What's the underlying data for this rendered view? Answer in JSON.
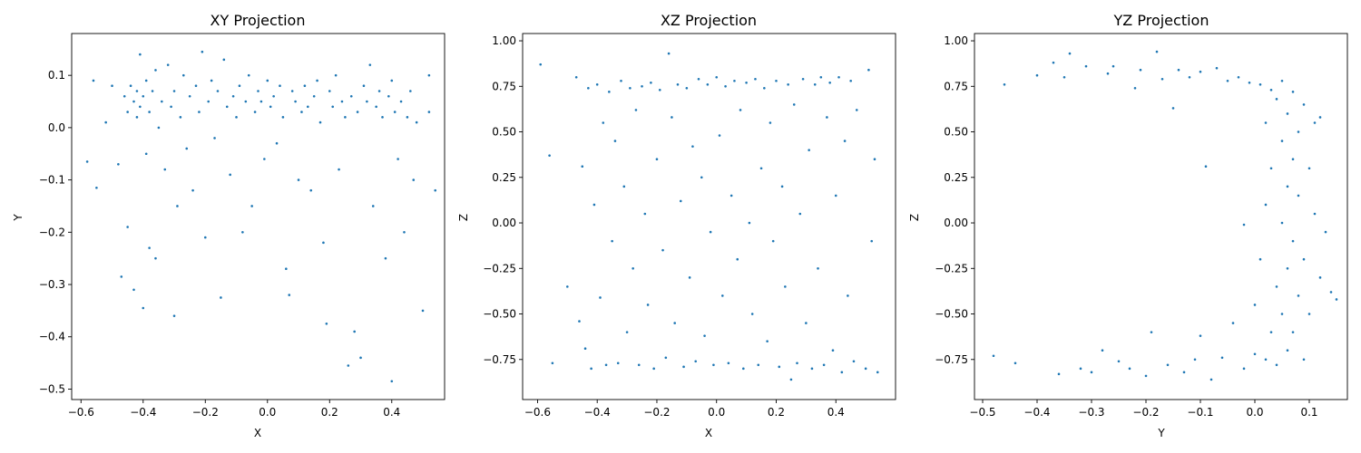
{
  "chart_data": [
    {
      "type": "scatter",
      "title": "XY Projection",
      "xlabel": "X",
      "ylabel": "Y",
      "xlim": [
        -0.63,
        0.57
      ],
      "ylim": [
        -0.52,
        0.18
      ],
      "xticks": [
        -0.6,
        -0.4,
        -0.2,
        0.0,
        0.2,
        0.4
      ],
      "yticks": [
        -0.5,
        -0.4,
        -0.3,
        -0.2,
        -0.1,
        0.0,
        0.1
      ],
      "xtick_labels": [
        "−0.6",
        "−0.4",
        "−0.2",
        "0.0",
        "0.2",
        "0.4"
      ],
      "ytick_labels": [
        "−0.5",
        "−0.4",
        "−0.3",
        "−0.2",
        "−0.1",
        "0.0",
        "0.1"
      ],
      "color": "#1f77b4",
      "points": [
        [
          -0.58,
          -0.065
        ],
        [
          -0.56,
          0.09
        ],
        [
          -0.55,
          -0.115
        ],
        [
          -0.52,
          0.01
        ],
        [
          -0.5,
          0.08
        ],
        [
          -0.48,
          -0.07
        ],
        [
          -0.47,
          -0.285
        ],
        [
          -0.46,
          0.06
        ],
        [
          -0.45,
          0.03
        ],
        [
          -0.45,
          -0.19
        ],
        [
          -0.44,
          0.08
        ],
        [
          -0.43,
          0.05
        ],
        [
          -0.43,
          -0.31
        ],
        [
          -0.42,
          0.02
        ],
        [
          -0.42,
          0.07
        ],
        [
          -0.41,
          0.14
        ],
        [
          -0.41,
          0.04
        ],
        [
          -0.4,
          0.06
        ],
        [
          -0.4,
          -0.345
        ],
        [
          -0.39,
          0.09
        ],
        [
          -0.39,
          -0.05
        ],
        [
          -0.38,
          0.03
        ],
        [
          -0.38,
          -0.23
        ],
        [
          -0.37,
          0.07
        ],
        [
          -0.36,
          0.11
        ],
        [
          -0.36,
          -0.25
        ],
        [
          -0.35,
          0.0
        ],
        [
          -0.34,
          0.05
        ],
        [
          -0.33,
          -0.08
        ],
        [
          -0.32,
          0.12
        ],
        [
          -0.31,
          0.04
        ],
        [
          -0.3,
          -0.36
        ],
        [
          -0.3,
          0.07
        ],
        [
          -0.29,
          -0.15
        ],
        [
          -0.28,
          0.02
        ],
        [
          -0.27,
          0.1
        ],
        [
          -0.26,
          -0.04
        ],
        [
          -0.25,
          0.06
        ],
        [
          -0.24,
          -0.12
        ],
        [
          -0.23,
          0.08
        ],
        [
          -0.22,
          0.03
        ],
        [
          -0.21,
          0.145
        ],
        [
          -0.2,
          -0.21
        ],
        [
          -0.19,
          0.05
        ],
        [
          -0.18,
          0.09
        ],
        [
          -0.17,
          -0.02
        ],
        [
          -0.16,
          0.07
        ],
        [
          -0.15,
          -0.325
        ],
        [
          -0.14,
          0.13
        ],
        [
          -0.13,
          0.04
        ],
        [
          -0.12,
          -0.09
        ],
        [
          -0.11,
          0.06
        ],
        [
          -0.1,
          0.02
        ],
        [
          -0.09,
          0.08
        ],
        [
          -0.08,
          -0.2
        ],
        [
          -0.07,
          0.05
        ],
        [
          -0.06,
          0.1
        ],
        [
          -0.05,
          -0.15
        ],
        [
          -0.04,
          0.03
        ],
        [
          -0.03,
          0.07
        ],
        [
          -0.02,
          0.05
        ],
        [
          -0.01,
          -0.06
        ],
        [
          0.0,
          0.09
        ],
        [
          0.01,
          0.04
        ],
        [
          0.02,
          0.06
        ],
        [
          0.03,
          -0.03
        ],
        [
          0.04,
          0.08
        ],
        [
          0.05,
          0.02
        ],
        [
          0.06,
          -0.27
        ],
        [
          0.07,
          -0.32
        ],
        [
          0.08,
          0.07
        ],
        [
          0.09,
          0.05
        ],
        [
          0.1,
          -0.1
        ],
        [
          0.11,
          0.03
        ],
        [
          0.12,
          0.08
        ],
        [
          0.13,
          0.04
        ],
        [
          0.14,
          -0.12
        ],
        [
          0.15,
          0.06
        ],
        [
          0.16,
          0.09
        ],
        [
          0.17,
          0.01
        ],
        [
          0.18,
          -0.22
        ],
        [
          0.19,
          -0.375
        ],
        [
          0.2,
          0.07
        ],
        [
          0.21,
          0.04
        ],
        [
          0.22,
          0.1
        ],
        [
          0.23,
          -0.08
        ],
        [
          0.24,
          0.05
        ],
        [
          0.25,
          0.02
        ],
        [
          0.26,
          -0.455
        ],
        [
          0.27,
          0.06
        ],
        [
          0.28,
          -0.39
        ],
        [
          0.29,
          0.03
        ],
        [
          0.3,
          -0.44
        ],
        [
          0.31,
          0.08
        ],
        [
          0.32,
          0.05
        ],
        [
          0.33,
          0.12
        ],
        [
          0.34,
          -0.15
        ],
        [
          0.35,
          0.04
        ],
        [
          0.36,
          0.07
        ],
        [
          0.37,
          0.02
        ],
        [
          0.38,
          -0.25
        ],
        [
          0.39,
          0.06
        ],
        [
          0.4,
          0.09
        ],
        [
          0.4,
          -0.485
        ],
        [
          0.41,
          0.03
        ],
        [
          0.42,
          -0.06
        ],
        [
          0.43,
          0.05
        ],
        [
          0.44,
          -0.2
        ],
        [
          0.45,
          0.02
        ],
        [
          0.46,
          0.07
        ],
        [
          0.47,
          -0.1
        ],
        [
          0.48,
          0.01
        ],
        [
          0.5,
          -0.35
        ],
        [
          0.52,
          0.03
        ],
        [
          0.52,
          0.1
        ],
        [
          0.54,
          -0.12
        ]
      ]
    },
    {
      "type": "scatter",
      "title": "XZ Projection",
      "xlabel": "X",
      "ylabel": "Z",
      "xlim": [
        -0.65,
        0.6
      ],
      "ylim": [
        -0.97,
        1.04
      ],
      "xticks": [
        -0.6,
        -0.4,
        -0.2,
        0.0,
        0.2,
        0.4
      ],
      "yticks": [
        -0.75,
        -0.5,
        -0.25,
        0.0,
        0.25,
        0.5,
        0.75,
        1.0
      ],
      "xtick_labels": [
        "−0.6",
        "−0.4",
        "−0.2",
        "0.0",
        "0.2",
        "0.4"
      ],
      "ytick_labels": [
        "−0.75",
        "−0.50",
        "−0.25",
        "0.00",
        "0.25",
        "0.50",
        "0.75",
        "1.00"
      ],
      "color": "#1f77b4",
      "points": [
        [
          -0.59,
          0.87
        ],
        [
          -0.56,
          0.37
        ],
        [
          -0.55,
          -0.77
        ],
        [
          -0.5,
          -0.35
        ],
        [
          -0.47,
          0.8
        ],
        [
          -0.46,
          -0.54
        ],
        [
          -0.45,
          0.31
        ],
        [
          -0.44,
          -0.69
        ],
        [
          -0.43,
          0.74
        ],
        [
          -0.42,
          -0.8
        ],
        [
          -0.41,
          0.1
        ],
        [
          -0.4,
          0.76
        ],
        [
          -0.39,
          -0.41
        ],
        [
          -0.38,
          0.55
        ],
        [
          -0.37,
          -0.78
        ],
        [
          -0.36,
          0.72
        ],
        [
          -0.35,
          -0.1
        ],
        [
          -0.34,
          0.45
        ],
        [
          -0.33,
          -0.77
        ],
        [
          -0.32,
          0.78
        ],
        [
          -0.31,
          0.2
        ],
        [
          -0.3,
          -0.6
        ],
        [
          -0.29,
          0.74
        ],
        [
          -0.28,
          -0.25
        ],
        [
          -0.27,
          0.62
        ],
        [
          -0.26,
          -0.78
        ],
        [
          -0.25,
          0.75
        ],
        [
          -0.24,
          0.05
        ],
        [
          -0.23,
          -0.45
        ],
        [
          -0.22,
          0.77
        ],
        [
          -0.21,
          -0.8
        ],
        [
          -0.2,
          0.35
        ],
        [
          -0.19,
          0.73
        ],
        [
          -0.18,
          -0.15
        ],
        [
          -0.17,
          -0.74
        ],
        [
          -0.16,
          0.93
        ],
        [
          -0.15,
          0.58
        ],
        [
          -0.14,
          -0.55
        ],
        [
          -0.13,
          0.76
        ],
        [
          -0.12,
          0.12
        ],
        [
          -0.11,
          -0.79
        ],
        [
          -0.1,
          0.74
        ],
        [
          -0.09,
          -0.3
        ],
        [
          -0.08,
          0.42
        ],
        [
          -0.07,
          -0.76
        ],
        [
          -0.06,
          0.79
        ],
        [
          -0.05,
          0.25
        ],
        [
          -0.04,
          -0.62
        ],
        [
          -0.03,
          0.76
        ],
        [
          -0.02,
          -0.05
        ],
        [
          -0.01,
          -0.78
        ],
        [
          0.0,
          0.8
        ],
        [
          0.01,
          0.48
        ],
        [
          0.02,
          -0.4
        ],
        [
          0.03,
          0.75
        ],
        [
          0.04,
          -0.77
        ],
        [
          0.05,
          0.15
        ],
        [
          0.06,
          0.78
        ],
        [
          0.07,
          -0.2
        ],
        [
          0.08,
          0.62
        ],
        [
          0.09,
          -0.8
        ],
        [
          0.1,
          0.77
        ],
        [
          0.11,
          0.0
        ],
        [
          0.12,
          -0.5
        ],
        [
          0.13,
          0.79
        ],
        [
          0.14,
          -0.78
        ],
        [
          0.15,
          0.3
        ],
        [
          0.16,
          0.74
        ],
        [
          0.17,
          -0.65
        ],
        [
          0.18,
          0.55
        ],
        [
          0.19,
          -0.1
        ],
        [
          0.2,
          0.78
        ],
        [
          0.21,
          -0.79
        ],
        [
          0.22,
          0.2
        ],
        [
          0.23,
          -0.35
        ],
        [
          0.24,
          0.76
        ],
        [
          0.25,
          -0.86
        ],
        [
          0.26,
          0.65
        ],
        [
          0.27,
          -0.77
        ],
        [
          0.28,
          0.05
        ],
        [
          0.29,
          0.79
        ],
        [
          0.3,
          -0.55
        ],
        [
          0.31,
          0.4
        ],
        [
          0.32,
          -0.8
        ],
        [
          0.33,
          0.76
        ],
        [
          0.34,
          -0.25
        ],
        [
          0.35,
          0.8
        ],
        [
          0.36,
          -0.78
        ],
        [
          0.37,
          0.58
        ],
        [
          0.38,
          0.77
        ],
        [
          0.39,
          -0.7
        ],
        [
          0.4,
          0.15
        ],
        [
          0.41,
          0.8
        ],
        [
          0.42,
          -0.82
        ],
        [
          0.43,
          0.45
        ],
        [
          0.44,
          -0.4
        ],
        [
          0.45,
          0.78
        ],
        [
          0.46,
          -0.76
        ],
        [
          0.47,
          0.62
        ],
        [
          0.5,
          -0.8
        ],
        [
          0.51,
          0.84
        ],
        [
          0.52,
          -0.1
        ],
        [
          0.53,
          0.35
        ],
        [
          0.54,
          -0.82
        ]
      ]
    },
    {
      "type": "scatter",
      "title": "YZ Projection",
      "xlabel": "Y",
      "ylabel": "Z",
      "xlim": [
        -0.515,
        0.17
      ],
      "ylim": [
        -0.97,
        1.04
      ],
      "xticks": [
        -0.5,
        -0.4,
        -0.3,
        -0.2,
        -0.1,
        0.0,
        0.1
      ],
      "yticks": [
        -0.75,
        -0.5,
        -0.25,
        0.0,
        0.25,
        0.5,
        0.75,
        1.0
      ],
      "xtick_labels": [
        "−0.5",
        "−0.4",
        "−0.3",
        "−0.2",
        "−0.1",
        "0.0",
        "0.1"
      ],
      "ytick_labels": [
        "−0.75",
        "−0.50",
        "−0.25",
        "0.00",
        "0.25",
        "0.50",
        "0.75",
        "1.00"
      ],
      "color": "#1f77b4",
      "points": [
        [
          -0.48,
          -0.73
        ],
        [
          -0.46,
          0.76
        ],
        [
          -0.44,
          -0.77
        ],
        [
          -0.4,
          0.81
        ],
        [
          -0.37,
          0.88
        ],
        [
          -0.36,
          -0.83
        ],
        [
          -0.35,
          0.8
        ],
        [
          -0.34,
          0.93
        ],
        [
          -0.32,
          -0.8
        ],
        [
          -0.31,
          0.86
        ],
        [
          -0.3,
          -0.82
        ],
        [
          -0.28,
          -0.7
        ],
        [
          -0.27,
          0.82
        ],
        [
          -0.26,
          0.86
        ],
        [
          -0.25,
          -0.76
        ],
        [
          -0.23,
          -0.8
        ],
        [
          -0.22,
          0.74
        ],
        [
          -0.21,
          0.84
        ],
        [
          -0.2,
          -0.84
        ],
        [
          -0.19,
          -0.6
        ],
        [
          -0.18,
          0.94
        ],
        [
          -0.17,
          0.79
        ],
        [
          -0.16,
          -0.78
        ],
        [
          -0.15,
          0.63
        ],
        [
          -0.14,
          0.84
        ],
        [
          -0.13,
          -0.82
        ],
        [
          -0.12,
          0.8
        ],
        [
          -0.11,
          -0.75
        ],
        [
          -0.1,
          -0.62
        ],
        [
          -0.1,
          0.83
        ],
        [
          -0.09,
          0.31
        ],
        [
          -0.08,
          -0.86
        ],
        [
          -0.07,
          0.85
        ],
        [
          -0.06,
          -0.74
        ],
        [
          -0.05,
          0.78
        ],
        [
          -0.04,
          -0.55
        ],
        [
          -0.03,
          0.8
        ],
        [
          -0.02,
          -0.8
        ],
        [
          -0.02,
          -0.01
        ],
        [
          -0.01,
          0.77
        ],
        [
          0.0,
          -0.72
        ],
        [
          0.0,
          -0.45
        ],
        [
          0.01,
          0.76
        ],
        [
          0.01,
          -0.2
        ],
        [
          0.02,
          -0.75
        ],
        [
          0.02,
          0.55
        ],
        [
          0.02,
          0.1
        ],
        [
          0.03,
          0.73
        ],
        [
          0.03,
          -0.6
        ],
        [
          0.03,
          0.3
        ],
        [
          0.04,
          -0.35
        ],
        [
          0.04,
          0.68
        ],
        [
          0.04,
          -0.78
        ],
        [
          0.05,
          0.45
        ],
        [
          0.05,
          0.0
        ],
        [
          0.05,
          -0.5
        ],
        [
          0.05,
          0.78
        ],
        [
          0.06,
          0.2
        ],
        [
          0.06,
          -0.25
        ],
        [
          0.06,
          0.6
        ],
        [
          0.06,
          -0.7
        ],
        [
          0.07,
          0.35
        ],
        [
          0.07,
          -0.1
        ],
        [
          0.07,
          0.72
        ],
        [
          0.07,
          -0.6
        ],
        [
          0.08,
          0.5
        ],
        [
          0.08,
          -0.4
        ],
        [
          0.08,
          0.15
        ],
        [
          0.09,
          -0.2
        ],
        [
          0.09,
          0.65
        ],
        [
          0.09,
          -0.75
        ],
        [
          0.1,
          0.3
        ],
        [
          0.1,
          -0.5
        ],
        [
          0.11,
          0.55
        ],
        [
          0.11,
          0.05
        ],
        [
          0.12,
          -0.3
        ],
        [
          0.12,
          0.58
        ],
        [
          0.13,
          -0.05
        ],
        [
          0.14,
          -0.38
        ],
        [
          0.15,
          -0.42
        ]
      ]
    }
  ]
}
